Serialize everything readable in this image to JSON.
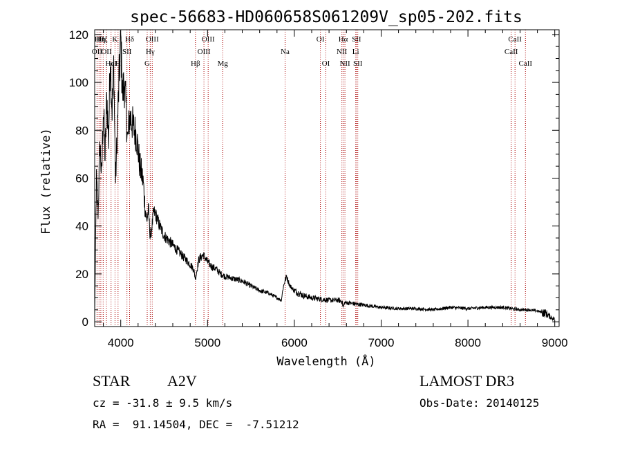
{
  "chart_data": {
    "type": "line",
    "title": "spec-56683-HD060658S061209V_sp05-202.fits",
    "xlabel": "Wavelength (Å)",
    "ylabel": "Flux (relative)",
    "xlim": [
      3700,
      9050
    ],
    "ylim": [
      -2,
      122
    ],
    "xticks": [
      4000,
      5000,
      6000,
      7000,
      8000,
      9000
    ],
    "xtick_labels": [
      "4000",
      "5000",
      "6000",
      "7000",
      "8000",
      "9000"
    ],
    "yticks": [
      0,
      20,
      40,
      60,
      80,
      100,
      120
    ],
    "ytick_labels": [
      "0",
      "20",
      "40",
      "60",
      "80",
      "100",
      "120"
    ],
    "grid": false,
    "line_color": "#000000",
    "marker_color": "#aa0000",
    "series": [
      {
        "x": [
          3700,
          3720,
          3740,
          3760,
          3780,
          3800,
          3820,
          3840,
          3860,
          3880,
          3900,
          3920,
          3940,
          3960,
          3980,
          4000,
          4020,
          4040,
          4060,
          4080,
          4100,
          4120,
          4140,
          4160,
          4180,
          4200,
          4220,
          4240,
          4260,
          4280,
          4300,
          4320,
          4340,
          4360,
          4380,
          4400,
          4450,
          4500,
          4550,
          4600,
          4650,
          4700,
          4750,
          4800,
          4840,
          4861,
          4880,
          4900,
          4950,
          5000,
          5050,
          5100,
          5150,
          5200,
          5300,
          5400,
          5500,
          5600,
          5700,
          5800,
          5850,
          5870,
          5890,
          5910,
          5930,
          5950,
          6000,
          6100,
          6200,
          6300,
          6400,
          6500,
          6550,
          6563,
          6580,
          6600,
          6700,
          6800,
          6900,
          7000,
          7200,
          7400,
          7600,
          7800,
          8000,
          8200,
          8400,
          8500,
          8600,
          8700,
          8800,
          8900,
          8950,
          9000
        ],
        "y": [
          3,
          60,
          45,
          75,
          60,
          90,
          68,
          95,
          75,
          112,
          88,
          108,
          58,
          80,
          100,
          118,
          95,
          100,
          90,
          75,
          85,
          85,
          82,
          80,
          78,
          72,
          65,
          62,
          58,
          48,
          42,
          47,
          35,
          40,
          46,
          45,
          40,
          36,
          34,
          32,
          30,
          28,
          26,
          24,
          22,
          18,
          22,
          26,
          28,
          25,
          23,
          22,
          20,
          19,
          18,
          17,
          15,
          13,
          12,
          10,
          9,
          14,
          17,
          19,
          17,
          15,
          13,
          11,
          10,
          9.5,
          9,
          9,
          8.5,
          6,
          8,
          8,
          7.5,
          7,
          6.5,
          6,
          5.5,
          5.5,
          5,
          6,
          5.5,
          6,
          6,
          5.5,
          5,
          5,
          4.5,
          3.5,
          2,
          1
        ]
      }
    ],
    "line_markers": [
      {
        "wavelength": 3727,
        "label": "OII",
        "row": 2
      },
      {
        "wavelength": 3750,
        "label": "Hθ",
        "row": 1
      },
      {
        "wavelength": 3771,
        "label": "Hη",
        "row": 1
      },
      {
        "wavelength": 3798,
        "label": "Hζ",
        "row": 1
      },
      {
        "wavelength": 3835,
        "label": "OII",
        "row": 2
      },
      {
        "wavelength": 3889,
        "label": "HeI",
        "row": 3
      },
      {
        "wavelength": 3934,
        "label": "K",
        "row": 1
      },
      {
        "wavelength": 3969,
        "label": "H",
        "row": 3
      },
      {
        "wavelength": 4072,
        "label": "SII",
        "row": 2
      },
      {
        "wavelength": 4102,
        "label": "Hδ",
        "row": 1
      },
      {
        "wavelength": 4305,
        "label": "G",
        "row": 3
      },
      {
        "wavelength": 4340,
        "label": "Hγ",
        "row": 2
      },
      {
        "wavelength": 4363,
        "label": "OIII",
        "row": 1
      },
      {
        "wavelength": 4861,
        "label": "Hβ",
        "row": 3
      },
      {
        "wavelength": 4959,
        "label": "OIII",
        "row": 2
      },
      {
        "wavelength": 5007,
        "label": "OIII",
        "row": 1
      },
      {
        "wavelength": 5175,
        "label": "Mg",
        "row": 3
      },
      {
        "wavelength": 5893,
        "label": "Na",
        "row": 2
      },
      {
        "wavelength": 6300,
        "label": "OI",
        "row": 1
      },
      {
        "wavelength": 6363,
        "label": "OI",
        "row": 3
      },
      {
        "wavelength": 6548,
        "label": "NII",
        "row": 2
      },
      {
        "wavelength": 6563,
        "label": "Hα",
        "row": 1
      },
      {
        "wavelength": 6583,
        "label": "NII",
        "row": 3
      },
      {
        "wavelength": 6707,
        "label": "Li",
        "row": 2
      },
      {
        "wavelength": 6716,
        "label": "SII",
        "row": 1
      },
      {
        "wavelength": 6731,
        "label": "SII",
        "row": 3
      },
      {
        "wavelength": 8498,
        "label": "CaII",
        "row": 2
      },
      {
        "wavelength": 8542,
        "label": "CaII",
        "row": 1
      },
      {
        "wavelength": 8662,
        "label": "CaII",
        "row": 3
      }
    ]
  },
  "footer": {
    "object_class": "STAR",
    "subclass": "A2V",
    "survey": "LAMOST DR3",
    "redshift": "cz = -31.8 ± 9.5 km/s",
    "obs_date": "Obs-Date: 20140125",
    "coords": "RA =  91.14504, DEC =  -7.51212"
  }
}
